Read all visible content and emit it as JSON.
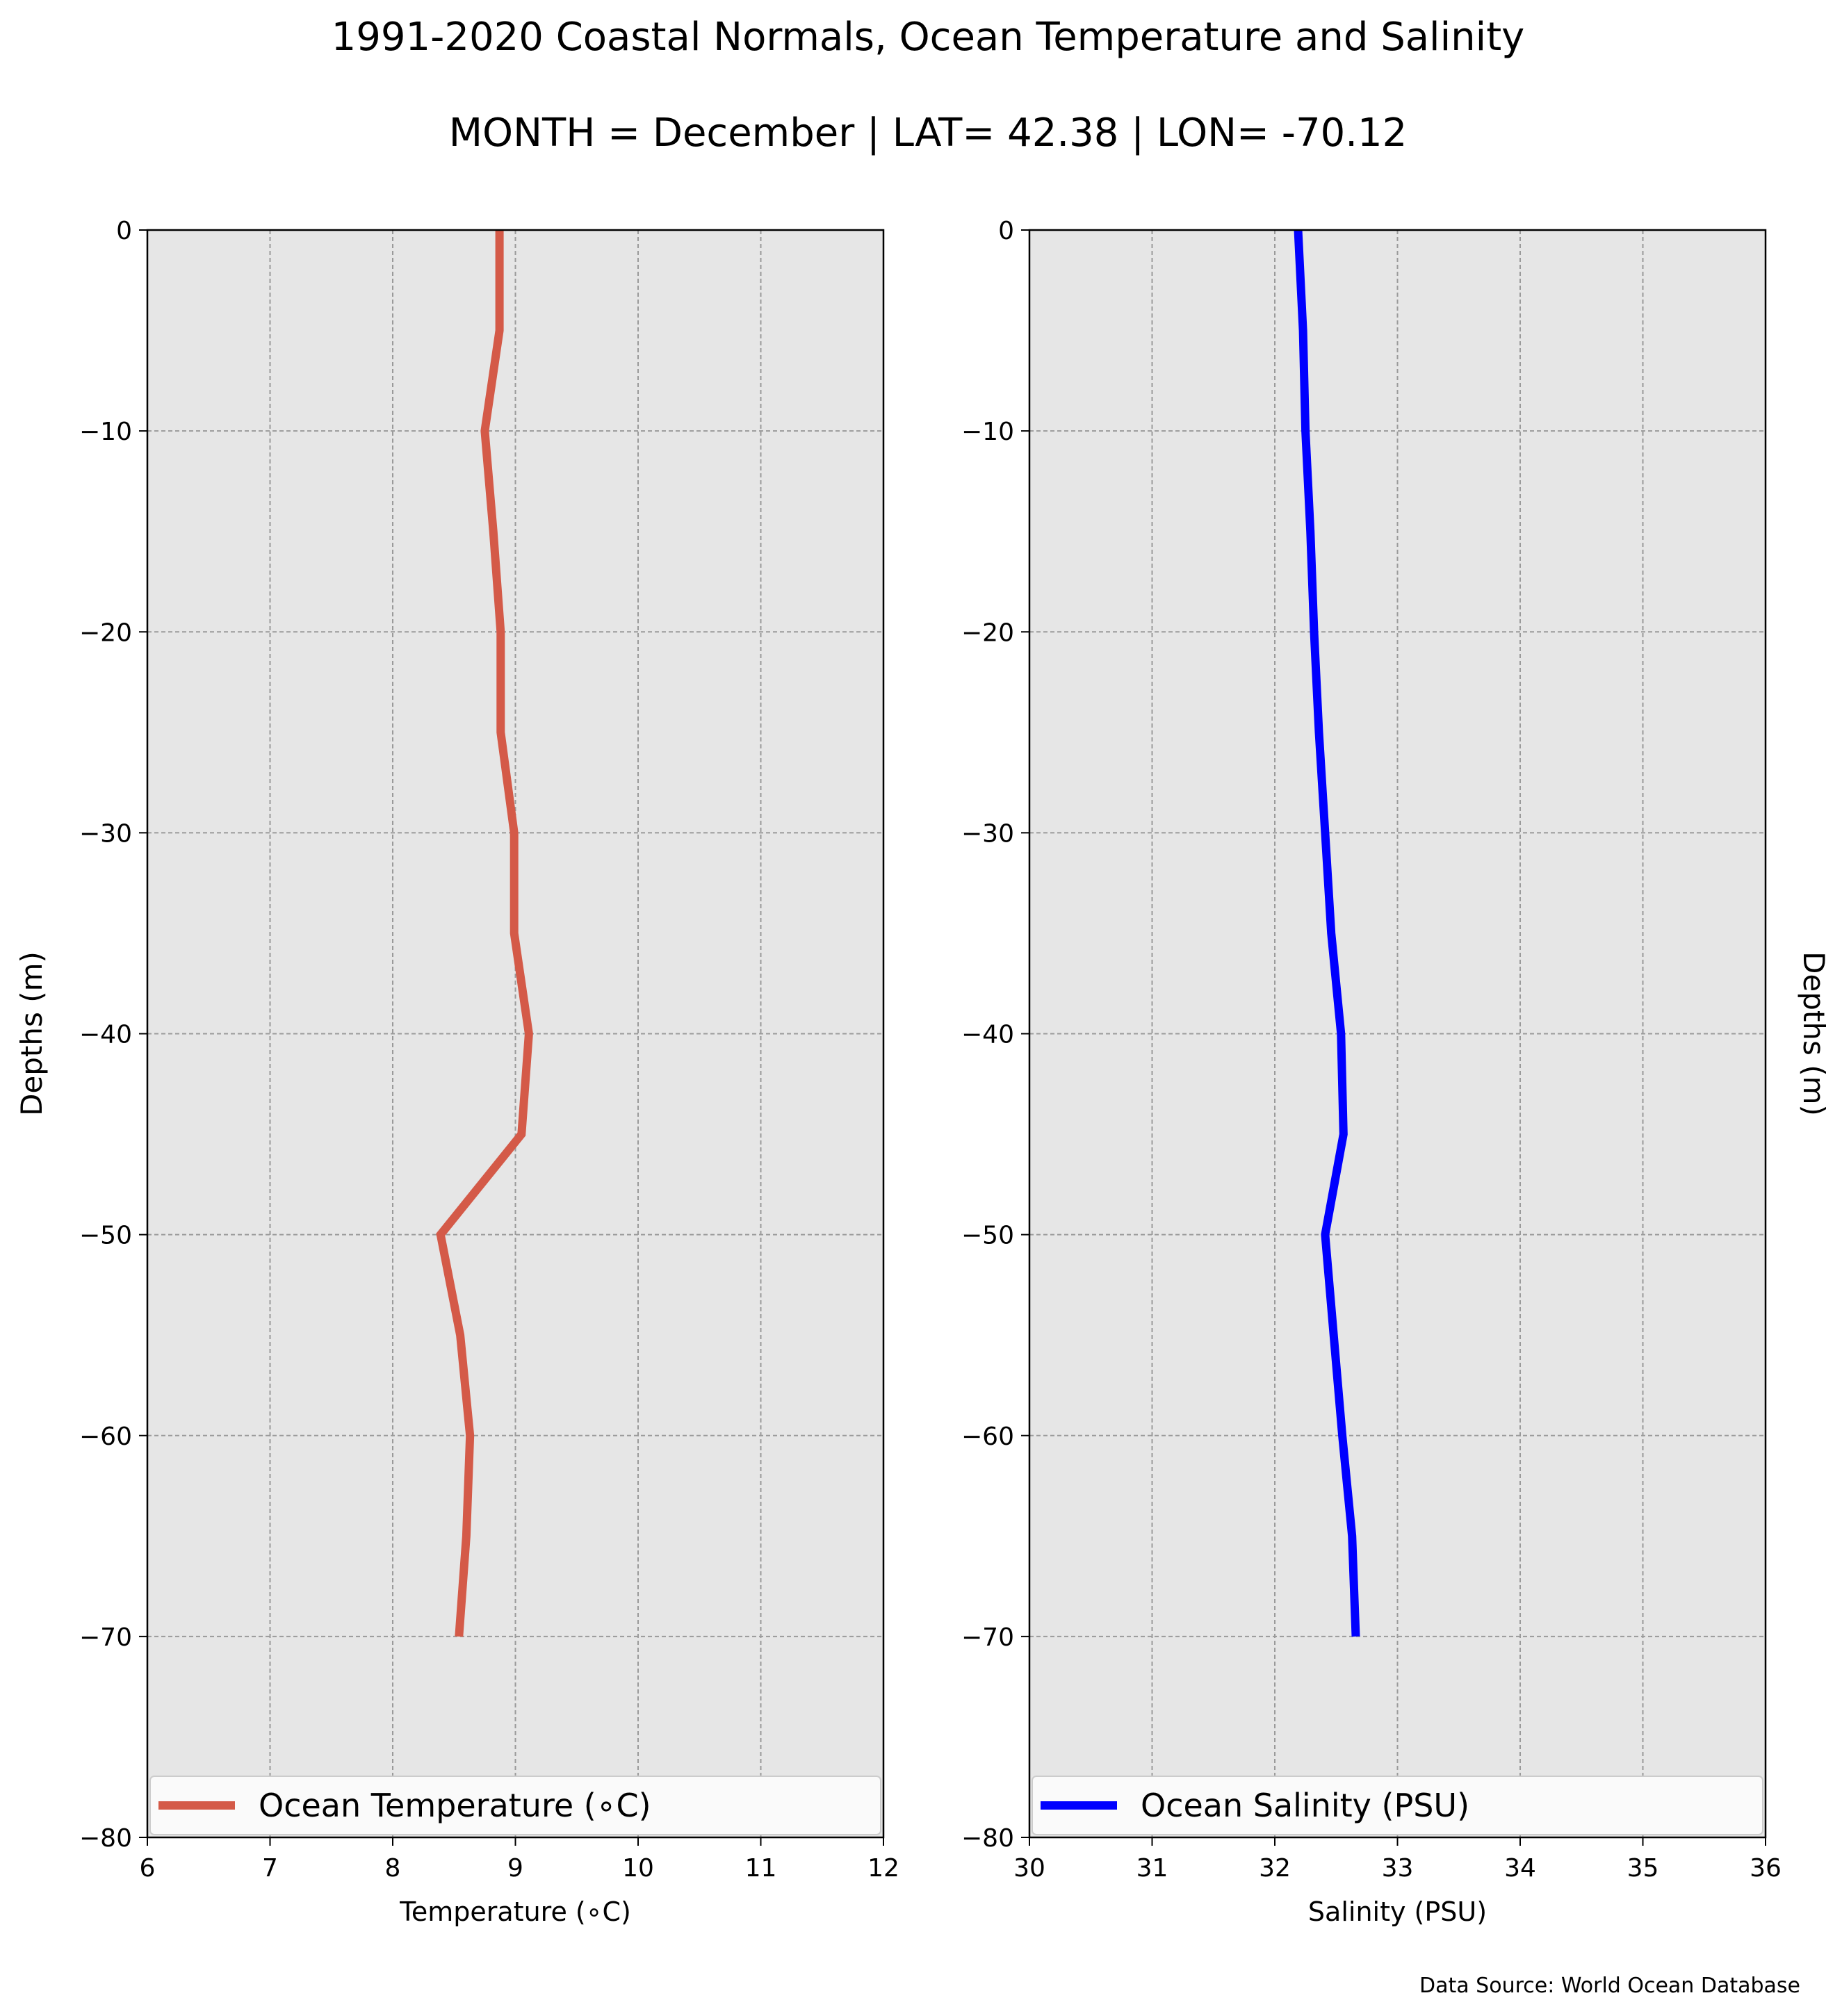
{
  "title": "1991-2020 Coastal Normals, Ocean Temperature and Salinity",
  "subtitle": "MONTH = December | LAT= 42.38 | LON= -70.12",
  "source": "Data Source: World Ocean Database",
  "chart_data": [
    {
      "type": "line",
      "xlabel": "Temperature (∘C)",
      "ylabel": "Depths (m)",
      "xlim": [
        6,
        12
      ],
      "ylim": [
        -80,
        0
      ],
      "xticks": [
        6,
        7,
        8,
        9,
        10,
        11,
        12
      ],
      "yticks": [
        0,
        -10,
        -20,
        -30,
        -40,
        -50,
        -60,
        -70,
        -80
      ],
      "ytick_labels": [
        "0",
        "−10",
        "−20",
        "−30",
        "−40",
        "−50",
        "−60",
        "−70",
        "−80"
      ],
      "grid": true,
      "legend_position": "bottom",
      "series": [
        {
          "name": "Ocean Temperature (∘C)",
          "color": "#d45a48",
          "x": [
            8.87,
            8.87,
            8.75,
            8.82,
            8.88,
            8.88,
            8.99,
            8.99,
            9.11,
            9.05,
            8.39,
            8.55,
            8.63,
            8.6,
            8.54
          ],
          "y": [
            0,
            -5,
            -10,
            -15,
            -20,
            -25,
            -30,
            -35,
            -40,
            -45,
            -50,
            -55,
            -60,
            -65,
            -70
          ]
        }
      ]
    },
    {
      "type": "line",
      "xlabel": "Salinity (PSU)",
      "ylabel": "Depths (m)",
      "xlim": [
        30,
        36
      ],
      "ylim": [
        -80,
        0
      ],
      "xticks": [
        30,
        31,
        32,
        33,
        34,
        35,
        36
      ],
      "yticks": [
        0,
        -10,
        -20,
        -30,
        -40,
        -50,
        -60,
        -70,
        -80
      ],
      "ytick_labels": [
        "0",
        "−10",
        "−20",
        "−30",
        "−40",
        "−50",
        "−60",
        "−70",
        "−80"
      ],
      "grid": true,
      "legend_position": "bottom",
      "series": [
        {
          "name": "Ocean Salinity (PSU)",
          "color": "#0000ff",
          "x": [
            32.19,
            32.23,
            32.25,
            32.29,
            32.32,
            32.36,
            32.41,
            32.46,
            32.54,
            32.56,
            32.41,
            32.48,
            32.55,
            32.63,
            32.66
          ],
          "y": [
            0,
            -5,
            -10,
            -15,
            -20,
            -25,
            -30,
            -35,
            -40,
            -45,
            -50,
            -55,
            -60,
            -65,
            -70
          ]
        }
      ]
    }
  ]
}
